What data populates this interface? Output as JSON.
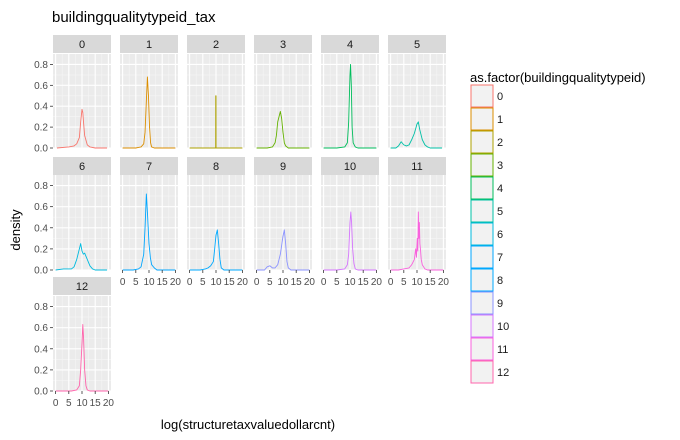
{
  "chart_data": {
    "type": "line",
    "subtype": "faceted density plot",
    "title": "buildingqualitytypeid_tax",
    "xlabel": "log(structuretaxvaluedollarcnt)",
    "ylabel": "density",
    "xlim": [
      0,
      20
    ],
    "ylim": [
      0,
      0.9
    ],
    "y_ticks": [
      0.0,
      0.2,
      0.4,
      0.6,
      0.8
    ],
    "y_tick_labels": [
      "0.0",
      "0.2",
      "0.4",
      "0.6",
      "0.8"
    ],
    "x_ticks": [
      0,
      5,
      10,
      15,
      20
    ],
    "x_tick_labels": [
      "0",
      "5",
      "10",
      "15",
      "20"
    ],
    "grid": true,
    "panel_background": "#ebebeb",
    "strip_background": "#d9d9d9",
    "legend": {
      "title": "as.factor(buildingqualitytypeid)",
      "placement": "right",
      "entries": [
        "0",
        "1",
        "2",
        "3",
        "4",
        "5",
        "6",
        "7",
        "8",
        "9",
        "10",
        "11",
        "12"
      ]
    },
    "series": [
      {
        "name": "0",
        "color": "#F8766D",
        "points": [
          [
            0.5,
            0
          ],
          [
            5,
            0.01
          ],
          [
            7,
            0.02
          ],
          [
            8,
            0.04
          ],
          [
            9,
            0.1
          ],
          [
            9.5,
            0.25
          ],
          [
            10,
            0.37
          ],
          [
            10.3,
            0.34
          ],
          [
            10.6,
            0.24
          ],
          [
            11,
            0.12
          ],
          [
            12,
            0.03
          ],
          [
            13,
            0.01
          ],
          [
            15,
            0
          ],
          [
            19.5,
            0
          ]
        ]
      },
      {
        "name": "1",
        "color": "#DB8E00",
        "points": [
          [
            0,
            0
          ],
          [
            5,
            0
          ],
          [
            6,
            0.005
          ],
          [
            7,
            0.01
          ],
          [
            8,
            0.04
          ],
          [
            8.5,
            0.15
          ],
          [
            9,
            0.45
          ],
          [
            9.4,
            0.68
          ],
          [
            9.8,
            0.5
          ],
          [
            10.2,
            0.2
          ],
          [
            10.6,
            0.05
          ],
          [
            11,
            0.01
          ],
          [
            12,
            0
          ],
          [
            20,
            0
          ]
        ]
      },
      {
        "name": "2",
        "color": "#AEA200",
        "points": [
          [
            0,
            0
          ],
          [
            9.88,
            0
          ],
          [
            9.9,
            0.5
          ],
          [
            10.0,
            0.5
          ],
          [
            10.02,
            0
          ],
          [
            20,
            0
          ]
        ]
      },
      {
        "name": "3",
        "color": "#64B200",
        "points": [
          [
            0,
            0
          ],
          [
            4,
            0
          ],
          [
            6,
            0.01
          ],
          [
            7,
            0.05
          ],
          [
            7.5,
            0.12
          ],
          [
            8,
            0.25
          ],
          [
            8.5,
            0.3
          ],
          [
            9,
            0.35
          ],
          [
            9.5,
            0.28
          ],
          [
            10,
            0.15
          ],
          [
            10.5,
            0.05
          ],
          [
            11,
            0.02
          ],
          [
            12,
            0
          ],
          [
            20,
            0
          ]
        ]
      },
      {
        "name": "4",
        "color": "#00BD5C",
        "points": [
          [
            0,
            0
          ],
          [
            5,
            0
          ],
          [
            8,
            0.01
          ],
          [
            9,
            0.05
          ],
          [
            9.5,
            0.25
          ],
          [
            10,
            0.7
          ],
          [
            10.2,
            0.8
          ],
          [
            10.5,
            0.6
          ],
          [
            10.8,
            0.2
          ],
          [
            11.2,
            0.05
          ],
          [
            12,
            0.01
          ],
          [
            13,
            0
          ],
          [
            20,
            0
          ]
        ]
      },
      {
        "name": "5",
        "color": "#00C1A7",
        "points": [
          [
            0,
            0
          ],
          [
            2,
            0
          ],
          [
            3,
            0.02
          ],
          [
            4,
            0.06
          ],
          [
            5,
            0.03
          ],
          [
            6,
            0.02
          ],
          [
            7,
            0.03
          ],
          [
            8,
            0.08
          ],
          [
            9,
            0.14
          ],
          [
            10,
            0.23
          ],
          [
            10.5,
            0.25
          ],
          [
            11,
            0.18
          ],
          [
            12,
            0.08
          ],
          [
            13,
            0.03
          ],
          [
            14,
            0.01
          ],
          [
            15,
            0
          ],
          [
            19.5,
            0
          ]
        ]
      },
      {
        "name": "6",
        "color": "#00BADE",
        "points": [
          [
            0,
            0
          ],
          [
            3,
            0.01
          ],
          [
            6,
            0.01
          ],
          [
            7,
            0.03
          ],
          [
            8,
            0.1
          ],
          [
            9,
            0.2
          ],
          [
            9.5,
            0.25
          ],
          [
            10,
            0.18
          ],
          [
            10.5,
            0.15
          ],
          [
            11,
            0.16
          ],
          [
            12,
            0.1
          ],
          [
            13,
            0.04
          ],
          [
            14,
            0.01
          ],
          [
            15,
            0
          ],
          [
            19.5,
            0
          ]
        ]
      },
      {
        "name": "7",
        "color": "#00A6FF",
        "points": [
          [
            0,
            0
          ],
          [
            4,
            0
          ],
          [
            6,
            0.01
          ],
          [
            7,
            0.03
          ],
          [
            8,
            0.15
          ],
          [
            8.5,
            0.4
          ],
          [
            9,
            0.72
          ],
          [
            9.5,
            0.5
          ],
          [
            10,
            0.25
          ],
          [
            10.5,
            0.12
          ],
          [
            11,
            0.05
          ],
          [
            12,
            0.02
          ],
          [
            13,
            0
          ],
          [
            20,
            0
          ]
        ]
      },
      {
        "name": "8",
        "color": "#00A9FF",
        "points": [
          [
            0,
            0
          ],
          [
            4,
            0
          ],
          [
            6,
            0.01
          ],
          [
            7,
            0.02
          ],
          [
            8,
            0.04
          ],
          [
            9,
            0.08
          ],
          [
            9.5,
            0.2
          ],
          [
            10,
            0.33
          ],
          [
            10.5,
            0.38
          ],
          [
            11,
            0.25
          ],
          [
            11.5,
            0.1
          ],
          [
            12,
            0.02
          ],
          [
            13,
            0
          ],
          [
            20,
            0
          ]
        ]
      },
      {
        "name": "9",
        "color": "#8B93FF",
        "points": [
          [
            0,
            0
          ],
          [
            3,
            0
          ],
          [
            4,
            0.03
          ],
          [
            5,
            0.04
          ],
          [
            6,
            0.02
          ],
          [
            7,
            0.02
          ],
          [
            8,
            0.05
          ],
          [
            9,
            0.15
          ],
          [
            10,
            0.32
          ],
          [
            10.5,
            0.38
          ],
          [
            11,
            0.25
          ],
          [
            11.5,
            0.08
          ],
          [
            12,
            0.02
          ],
          [
            13,
            0
          ],
          [
            20,
            0
          ]
        ]
      },
      {
        "name": "10",
        "color": "#D575FE",
        "points": [
          [
            0,
            0
          ],
          [
            5,
            0
          ],
          [
            8,
            0.01
          ],
          [
            9,
            0.05
          ],
          [
            9.5,
            0.15
          ],
          [
            10,
            0.45
          ],
          [
            10.3,
            0.55
          ],
          [
            10.6,
            0.45
          ],
          [
            11,
            0.2
          ],
          [
            11.5,
            0.06
          ],
          [
            12,
            0.01
          ],
          [
            13,
            0
          ],
          [
            20,
            0
          ]
        ]
      },
      {
        "name": "11",
        "color": "#F962DD",
        "points": [
          [
            0,
            0
          ],
          [
            3,
            0
          ],
          [
            5,
            0.01
          ],
          [
            7,
            0.02
          ],
          [
            8,
            0.05
          ],
          [
            9,
            0.1
          ],
          [
            9.5,
            0.2
          ],
          [
            9.8,
            0.12
          ],
          [
            10.1,
            0.3
          ],
          [
            10.3,
            0.18
          ],
          [
            10.5,
            0.55
          ],
          [
            10.7,
            0.3
          ],
          [
            10.9,
            0.45
          ],
          [
            11.1,
            0.25
          ],
          [
            11.3,
            0.2
          ],
          [
            11.6,
            0.1
          ],
          [
            12,
            0.05
          ],
          [
            13,
            0.01
          ],
          [
            14,
            0
          ],
          [
            20,
            0
          ]
        ]
      },
      {
        "name": "12",
        "color": "#FF65AC",
        "points": [
          [
            0,
            0
          ],
          [
            6,
            0
          ],
          [
            8,
            0.01
          ],
          [
            9,
            0.05
          ],
          [
            9.5,
            0.2
          ],
          [
            10,
            0.45
          ],
          [
            10.3,
            0.63
          ],
          [
            10.6,
            0.5
          ],
          [
            11,
            0.2
          ],
          [
            11.5,
            0.05
          ],
          [
            12,
            0.01
          ],
          [
            13,
            0
          ],
          [
            20,
            0
          ]
        ]
      }
    ]
  }
}
